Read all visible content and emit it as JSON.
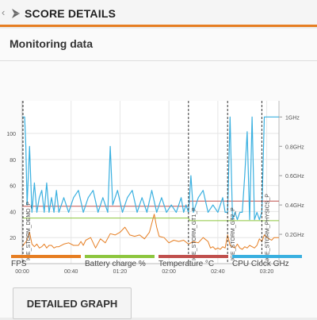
{
  "header": {
    "back_glyph": "‹",
    "title": "SCORE DETAILS",
    "logo_icon": "3dmark-logo-icon"
  },
  "card": {
    "title": "Monitoring data"
  },
  "colors": {
    "fps": "#e67e22",
    "battery": "#8dc63f",
    "temperature": "#c0504d",
    "cpu": "#3ab0e0",
    "accent": "#e67e22"
  },
  "legend": [
    {
      "label": "FPS",
      "color": "#e67e22"
    },
    {
      "label": "Battery charge %",
      "color": "#8dc63f"
    },
    {
      "label": "Temperature °C",
      "color": "#c0504d"
    },
    {
      "label": "CPU Clock GHz",
      "color": "#3ab0e0"
    }
  ],
  "button": {
    "label": "DETAILED GRAPH"
  },
  "chart_data": {
    "type": "line",
    "x_ticks": [
      "00:00",
      "00:40",
      "01:20",
      "02:00",
      "02:40",
      "03:20"
    ],
    "x_range_minutes": [
      0,
      210
    ],
    "y_left_ticks": [
      "20",
      "40",
      "60",
      "80",
      "100"
    ],
    "y_left_range": [
      0,
      125
    ],
    "y_right_ticks": [
      "0.2GHz",
      "0.4GHz",
      "0.6GHz",
      "0.8GHz",
      "1GHz"
    ],
    "y_right_range": [
      0,
      1.11
    ],
    "grid": true,
    "markers": [
      {
        "label": "ICE_STORM_DEMO_P",
        "x": 0
      },
      {
        "label": "ICE_STORM_GT1_P",
        "x": 136
      },
      {
        "label": "ICE_STORM_GT2_P",
        "x": 168
      },
      {
        "label": "ICE_STORM_PHYSICS_P",
        "x": 196
      }
    ],
    "series": [
      {
        "name": "FPS",
        "axis": "left",
        "x": [
          0,
          4,
          6,
          8,
          10,
          12,
          14,
          16,
          18,
          20,
          22,
          24,
          26,
          28,
          30,
          34,
          38,
          42,
          46,
          48,
          50,
          52,
          56,
          60,
          64,
          68,
          72,
          76,
          80,
          84,
          88,
          92,
          96,
          100,
          104,
          108,
          110,
          112,
          116,
          120,
          124,
          128,
          132,
          136,
          140,
          144,
          148,
          152,
          154,
          156,
          158,
          160,
          162,
          164,
          166,
          168,
          170,
          172,
          174,
          176,
          178,
          180,
          182,
          184,
          186,
          188,
          190,
          192,
          194,
          196,
          198,
          200,
          202,
          204,
          206,
          208,
          210
        ],
        "y": [
          13,
          18,
          24,
          15,
          13,
          15,
          12,
          13,
          15,
          12,
          14,
          14,
          12,
          13,
          13,
          15,
          16,
          14,
          14,
          17,
          14,
          18,
          20,
          12,
          19,
          16,
          23,
          22,
          24,
          28,
          22,
          21,
          22,
          19,
          24,
          38,
          28,
          21,
          20,
          16,
          18,
          17,
          18,
          15,
          17,
          16,
          20,
          17,
          12,
          13,
          11,
          12,
          11,
          13,
          12,
          22,
          14,
          13,
          12,
          15,
          12,
          11,
          13,
          12,
          14,
          13,
          12,
          14,
          19,
          17,
          22,
          20,
          19,
          18,
          20,
          20,
          20
        ]
      },
      {
        "name": "Battery charge %",
        "axis": "left",
        "x": [
          0,
          136,
          137,
          210
        ],
        "y": [
          35,
          35,
          33,
          33
        ]
      },
      {
        "name": "Temperature °C",
        "axis": "left",
        "x": [
          0,
          136,
          137,
          210
        ],
        "y": [
          44,
          44,
          48,
          48
        ]
      },
      {
        "name": "CPU Clock GHz",
        "axis": "right",
        "x": [
          0,
          2,
          3,
          4,
          6,
          8,
          10,
          12,
          14,
          16,
          18,
          20,
          22,
          24,
          26,
          28,
          30,
          34,
          38,
          42,
          46,
          50,
          54,
          58,
          62,
          66,
          70,
          72,
          74,
          78,
          82,
          86,
          90,
          94,
          98,
          102,
          106,
          110,
          114,
          118,
          122,
          126,
          130,
          132,
          134,
          136,
          138,
          140,
          144,
          148,
          152,
          156,
          160,
          164,
          166,
          168,
          170,
          172,
          174,
          176,
          178,
          180,
          182,
          184,
          186,
          188,
          190,
          192,
          194,
          196,
          198,
          200,
          202,
          204,
          206,
          208,
          210
        ],
        "y": [
          1.0,
          1.0,
          0.8,
          0.4,
          0.8,
          0.35,
          0.55,
          0.35,
          0.45,
          0.5,
          0.35,
          0.55,
          0.35,
          0.45,
          0.35,
          0.5,
          0.35,
          0.45,
          0.35,
          0.45,
          0.5,
          0.35,
          0.45,
          0.5,
          0.35,
          0.45,
          0.35,
          0.8,
          0.4,
          0.5,
          0.35,
          0.45,
          0.5,
          0.35,
          0.45,
          0.35,
          0.5,
          0.35,
          0.45,
          0.35,
          0.4,
          0.35,
          0.45,
          0.35,
          0.4,
          0.35,
          0.6,
          0.35,
          0.45,
          0.5,
          0.35,
          0.4,
          0.35,
          0.45,
          0.35,
          0.35,
          1.0,
          0.3,
          0.35,
          0.3,
          0.35,
          0.35,
          0.6,
          0.9,
          0.3,
          1.0,
          0.3,
          0.35,
          0.3,
          0.35,
          1.0,
          1.0,
          1.0,
          1.0,
          1.0,
          1.0,
          1.0
        ]
      }
    ]
  }
}
